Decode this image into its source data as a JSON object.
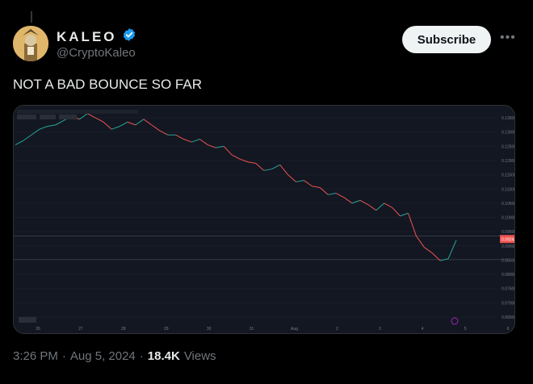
{
  "author": {
    "display_name": "KALEO",
    "handle": "@CryptoKaleo",
    "verified": true
  },
  "actions": {
    "subscribe_label": "Subscribe",
    "more_icon": "more-icon"
  },
  "tweet": {
    "text": "NOT A BAD BOUNCE SO FAR"
  },
  "meta": {
    "time": "3:26 PM",
    "sep1": "·",
    "date": "Aug 5, 2024",
    "sep2": "·",
    "views": "18.4K",
    "views_label": "Views"
  },
  "colors": {
    "background": "#000000",
    "chart_bg": "#131722",
    "verified": "#1d9bf0",
    "up": "#26a69a",
    "down": "#ef5350"
  },
  "chart_data": {
    "type": "line",
    "x_ticks": [
      "26",
      "27",
      "28",
      "29",
      "30",
      "31",
      "Aug",
      "2",
      "3",
      "4",
      "5",
      "6"
    ],
    "y_ticks": [
      "0.13500",
      "0.13000",
      "0.12500",
      "0.12000",
      "0.11500",
      "0.11000",
      "0.10500",
      "0.10000",
      "0.09500",
      "0.09000",
      "0.08500",
      "0.08000",
      "0.07500",
      "0.07000",
      "0.06500"
    ],
    "price_tag": "0.09242",
    "ylim": [
      0.065,
      0.137
    ],
    "series": [
      {
        "values": [
          0.1255,
          0.127,
          0.129,
          0.131,
          0.132,
          0.1325,
          0.134,
          0.1355,
          0.1345,
          0.1365,
          0.135,
          0.1335,
          0.131,
          0.132,
          0.1335,
          0.1325,
          0.1345,
          0.1325,
          0.1305,
          0.129,
          0.129,
          0.1275,
          0.1265,
          0.1275,
          0.1255,
          0.1245,
          0.125,
          0.122,
          0.1205,
          0.1195,
          0.119,
          0.1165,
          0.117,
          0.1185,
          0.115,
          0.1125,
          0.113,
          0.111,
          0.1105,
          0.108,
          0.1085,
          0.107,
          0.105,
          0.106,
          0.1045,
          0.1025,
          0.105,
          0.1035,
          0.1005,
          0.1015,
          0.0935,
          0.0895,
          0.0875,
          0.0848,
          0.0855,
          0.092
        ],
        "x_start": "25.7",
        "x_step": "0.1"
      }
    ],
    "hlines": [
      0.0935,
      0.0852
    ]
  }
}
